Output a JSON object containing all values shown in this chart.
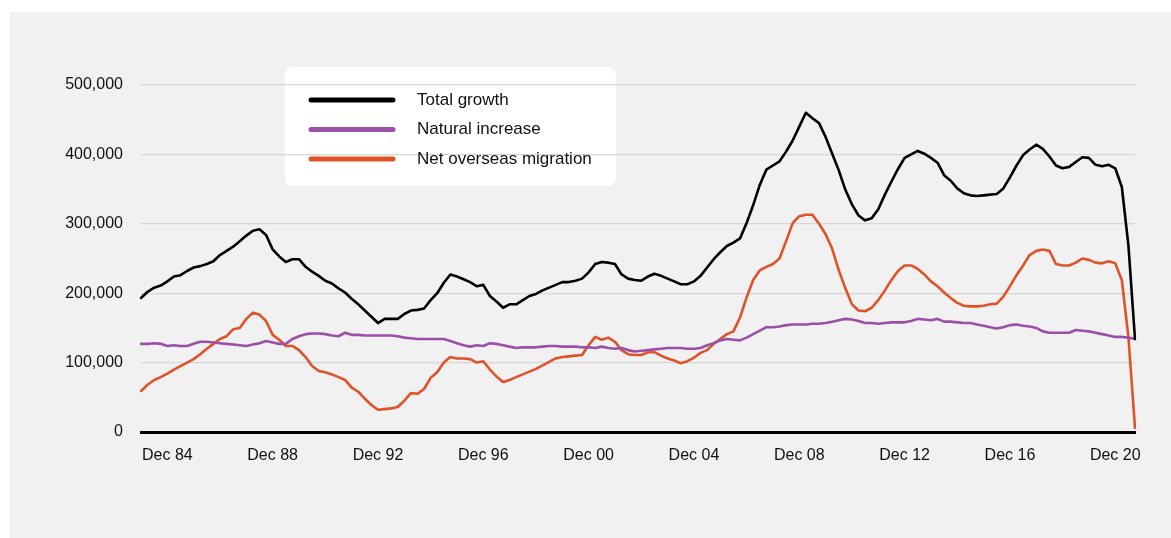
{
  "chart_data": {
    "type": "line",
    "ylim": [
      0,
      500000
    ],
    "categories": [
      null,
      null,
      null,
      null,
      "Dec 84",
      null,
      null,
      null,
      null,
      null,
      null,
      null,
      null,
      null,
      null,
      null,
      null,
      null,
      null,
      null,
      "Dec 88",
      null,
      null,
      null,
      null,
      null,
      null,
      null,
      null,
      null,
      null,
      null,
      null,
      null,
      null,
      null,
      "Dec 92",
      null,
      null,
      null,
      null,
      null,
      null,
      null,
      null,
      null,
      null,
      null,
      null,
      null,
      null,
      null,
      "Dec 96",
      null,
      null,
      null,
      null,
      null,
      null,
      null,
      null,
      null,
      null,
      null,
      null,
      null,
      null,
      null,
      "Dec 00",
      null,
      null,
      null,
      null,
      null,
      null,
      null,
      null,
      null,
      null,
      null,
      null,
      null,
      null,
      null,
      "Dec 04",
      null,
      null,
      null,
      null,
      null,
      null,
      null,
      null,
      null,
      null,
      null,
      null,
      null,
      null,
      null,
      "Dec 08",
      null,
      null,
      null,
      null,
      null,
      null,
      null,
      null,
      null,
      null,
      null,
      null,
      null,
      null,
      null,
      "Dec 12",
      null,
      null,
      null,
      null,
      null,
      null,
      null,
      null,
      null,
      null,
      null,
      null,
      null,
      null,
      null,
      "Dec 16",
      null,
      null,
      null,
      null,
      null,
      null,
      null,
      null,
      null,
      null,
      null,
      null,
      null,
      null,
      null,
      "Dec 20",
      null,
      null,
      null
    ],
    "yticks": [
      {
        "value": 0,
        "label": "0"
      },
      {
        "value": 100000,
        "label": "100,000"
      },
      {
        "value": 200000,
        "label": "200,000"
      },
      {
        "value": 300000,
        "label": "300,000"
      },
      {
        "value": 400000,
        "label": "400,000"
      },
      {
        "value": 500000,
        "label": "500,000"
      }
    ],
    "grid": "y",
    "legend": "top left",
    "marker": "none",
    "line_style": "solid",
    "series": [
      {
        "name": "Total growth",
        "color": "#000000",
        "values": [
          193000,
          202000,
          208000,
          211000,
          217000,
          224000,
          226000,
          232000,
          237000,
          239000,
          242000,
          246000,
          255000,
          261000,
          267000,
          275000,
          283000,
          290000,
          292000,
          284000,
          263000,
          253000,
          245000,
          249000,
          249000,
          238000,
          231000,
          225000,
          218000,
          214000,
          207000,
          201000,
          192000,
          184000,
          175000,
          166000,
          157000,
          163000,
          163000,
          163000,
          170000,
          175000,
          176000,
          178000,
          190000,
          200000,
          215000,
          227000,
          224000,
          220000,
          216000,
          210000,
          212000,
          196000,
          188000,
          179000,
          184000,
          184000,
          190000,
          196000,
          199000,
          204000,
          208000,
          212000,
          216000,
          216000,
          218000,
          221000,
          230000,
          242000,
          245000,
          244000,
          242000,
          227000,
          221000,
          219000,
          218000,
          224000,
          228000,
          225000,
          221000,
          217000,
          213000,
          213000,
          217000,
          225000,
          237000,
          249000,
          259000,
          268000,
          273000,
          279000,
          301000,
          327000,
          356000,
          378000,
          384000,
          390000,
          404000,
          420000,
          440000,
          460000,
          452000,
          445000,
          425000,
          401000,
          377000,
          349000,
          328000,
          312000,
          305000,
          308000,
          321000,
          342000,
          361000,
          379000,
          395000,
          400000,
          405000,
          401000,
          395000,
          388000,
          370000,
          362000,
          351000,
          344000,
          341000,
          340000,
          341000,
          342000,
          343000,
          351000,
          367000,
          384000,
          399000,
          407000,
          414000,
          408000,
          397000,
          384000,
          380000,
          382000,
          389000,
          396000,
          395000,
          385000,
          383000,
          385000,
          380000,
          353000,
          269000,
          134000
        ]
      },
      {
        "name": "Natural increase",
        "color": "#9b4fa8",
        "values": [
          127000,
          127000,
          128000,
          127000,
          124000,
          125000,
          124000,
          124000,
          127000,
          130000,
          130000,
          129000,
          128000,
          127000,
          126000,
          125000,
          124000,
          126000,
          128000,
          131000,
          129000,
          127000,
          127000,
          134000,
          138000,
          141000,
          142000,
          142000,
          141000,
          139000,
          138000,
          143000,
          140000,
          140000,
          139000,
          139000,
          139000,
          139000,
          139000,
          138000,
          136000,
          135000,
          134000,
          134000,
          134000,
          134000,
          134000,
          131000,
          128000,
          125000,
          123000,
          125000,
          124000,
          128000,
          127000,
          125000,
          123000,
          121000,
          122000,
          122000,
          122000,
          123000,
          124000,
          124000,
          123000,
          123000,
          123000,
          122000,
          122000,
          121000,
          123000,
          121000,
          120000,
          121000,
          118000,
          116000,
          117000,
          118000,
          119000,
          120000,
          121000,
          121000,
          121000,
          120000,
          120000,
          121000,
          125000,
          128000,
          132000,
          134000,
          133000,
          132000,
          136000,
          141000,
          146000,
          151000,
          151000,
          152000,
          154000,
          155000,
          155000,
          155000,
          156000,
          156000,
          157000,
          159000,
          161000,
          163000,
          162000,
          160000,
          157000,
          157000,
          156000,
          157000,
          158000,
          158000,
          158000,
          160000,
          163000,
          162000,
          161000,
          163000,
          159000,
          159000,
          158000,
          157000,
          157000,
          155000,
          153000,
          151000,
          149000,
          151000,
          154000,
          155000,
          153000,
          152000,
          150000,
          145000,
          143000,
          143000,
          143000,
          143000,
          147000,
          146000,
          145000,
          143000,
          141000,
          139000,
          137000,
          137000,
          136000,
          134000
        ]
      },
      {
        "name": "Net overseas migration",
        "color": "#e0532a",
        "values": [
          59000,
          68000,
          75000,
          79000,
          84000,
          90000,
          95000,
          100000,
          105000,
          112000,
          120000,
          127000,
          134000,
          138000,
          148000,
          150000,
          163000,
          172000,
          169000,
          160000,
          140000,
          133000,
          124000,
          124000,
          118000,
          108000,
          95000,
          88000,
          86000,
          83000,
          79000,
          75000,
          64000,
          58000,
          48000,
          39000,
          32000,
          33000,
          34000,
          36000,
          45000,
          56000,
          55000,
          62000,
          78000,
          86000,
          100000,
          108000,
          106000,
          106000,
          105000,
          100000,
          102000,
          90000,
          80000,
          72000,
          75000,
          79000,
          83000,
          87000,
          91000,
          96000,
          101000,
          106000,
          108000,
          109000,
          110000,
          111000,
          125000,
          137000,
          133000,
          136000,
          130000,
          118000,
          112000,
          111000,
          111000,
          115000,
          115000,
          110000,
          106000,
          103000,
          99000,
          102000,
          107000,
          114000,
          118000,
          127000,
          134000,
          141000,
          145000,
          165000,
          194000,
          219000,
          233000,
          238000,
          242000,
          250000,
          275000,
          301000,
          311000,
          313000,
          313000,
          300000,
          285000,
          264000,
          233000,
          207000,
          184000,
          175000,
          174000,
          179000,
          190000,
          204000,
          219000,
          232000,
          240000,
          240000,
          235000,
          227000,
          217000,
          210000,
          201000,
          193000,
          186000,
          182000,
          181000,
          181000,
          182000,
          184000,
          185000,
          195000,
          210000,
          226000,
          240000,
          255000,
          261000,
          263000,
          261000,
          242000,
          240000,
          240000,
          244000,
          250000,
          248000,
          244000,
          243000,
          246000,
          243000,
          219000,
          137000,
          6000
        ]
      }
    ]
  }
}
